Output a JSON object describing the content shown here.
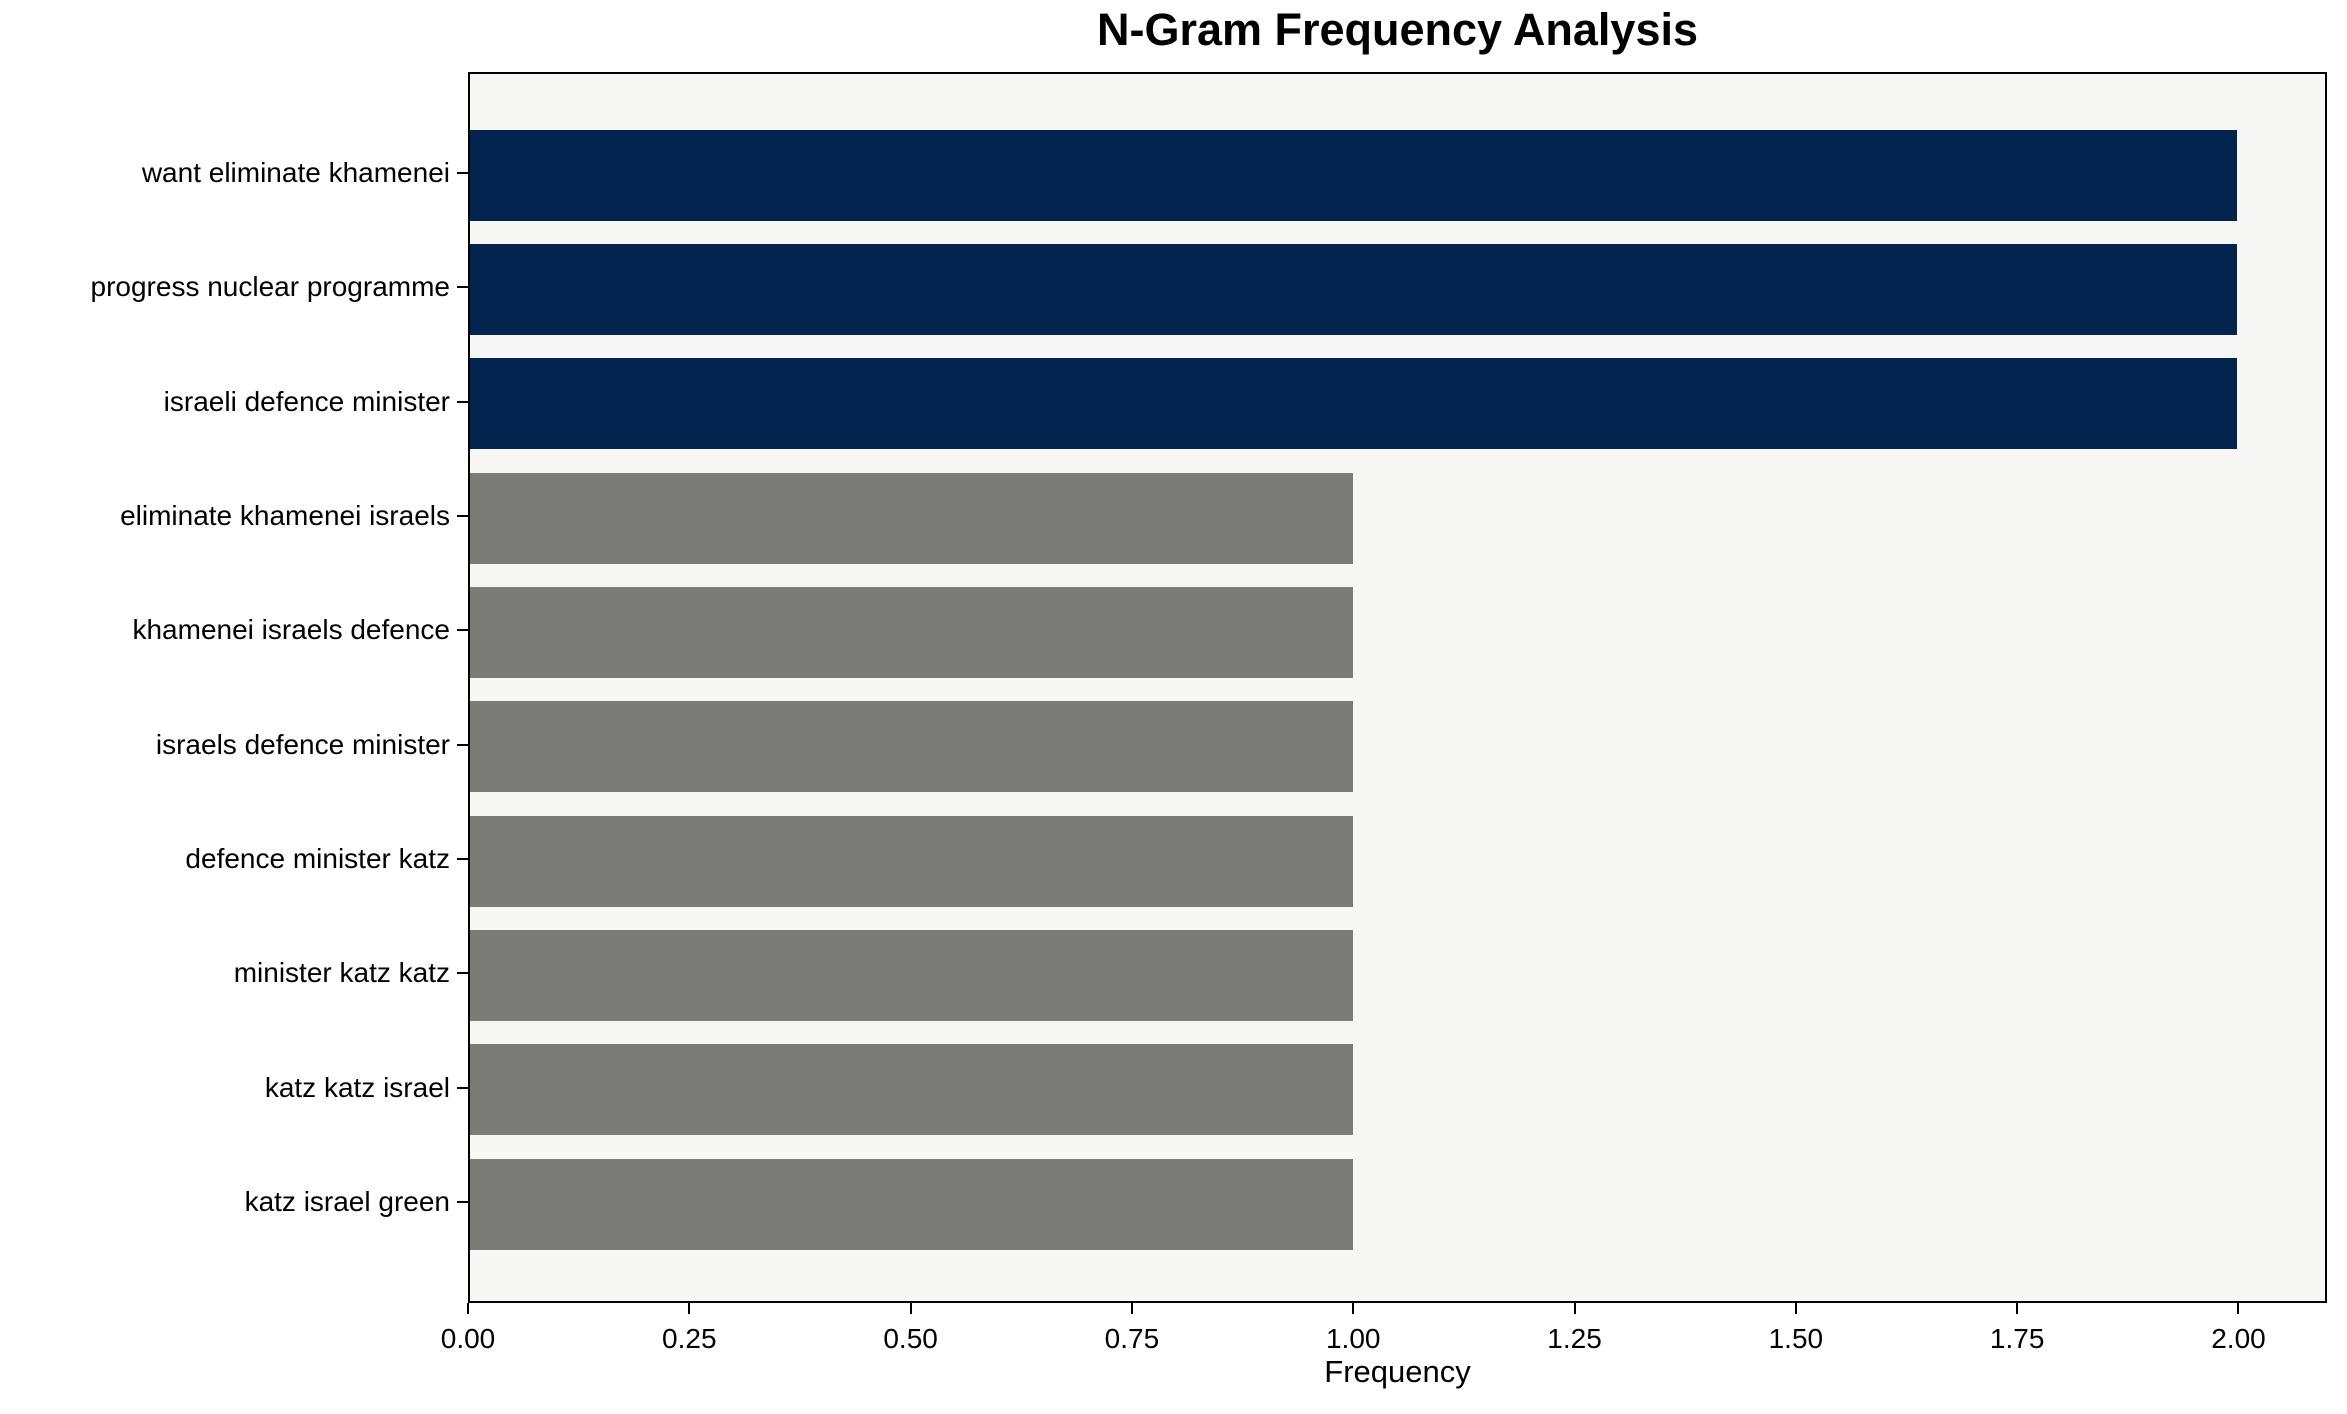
{
  "chart_data": {
    "type": "bar",
    "orientation": "horizontal",
    "title": "N-Gram Frequency Analysis",
    "xlabel": "Frequency",
    "ylabel": "",
    "categories": [
      "want eliminate khamenei",
      "progress nuclear programme",
      "israeli defence minister",
      "eliminate khamenei israels",
      "khamenei israels defence",
      "israels defence minister",
      "defence minister katz",
      "minister katz katz",
      "katz katz israel",
      "katz israel green"
    ],
    "values": [
      2,
      2,
      2,
      1,
      1,
      1,
      1,
      1,
      1,
      1
    ],
    "bar_colors": [
      "#02244e",
      "#02244e",
      "#02244e",
      "#7b7b77",
      "#7b7b77",
      "#7b7b77",
      "#7b7b77",
      "#7b7b77",
      "#7b7b77",
      "#7b7b77"
    ],
    "highlight_color": "#02244e",
    "default_color": "#7b7b77",
    "xlim": [
      0,
      2.1
    ],
    "x_ticks": [
      0.0,
      0.25,
      0.5,
      0.75,
      1.0,
      1.25,
      1.5,
      1.75,
      2.0
    ],
    "x_tick_labels": [
      "0.00",
      "0.25",
      "0.50",
      "0.75",
      "1.00",
      "1.25",
      "1.50",
      "1.75",
      "2.00"
    ],
    "grid": false,
    "legend": null,
    "plot_background": "#f7f7f6",
    "figure_background": "#ffffff",
    "spine_color": "#000000"
  }
}
